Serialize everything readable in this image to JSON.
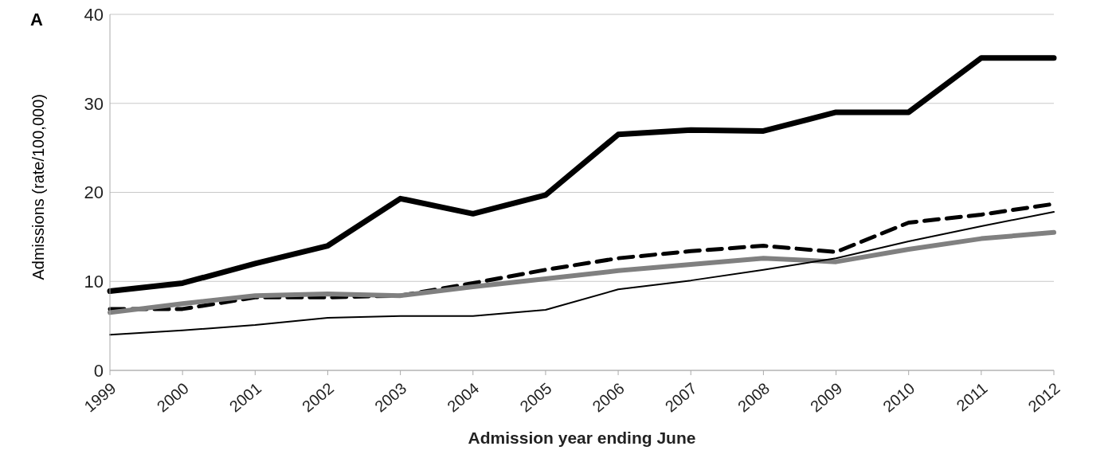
{
  "chart_data": {
    "type": "line",
    "xlabel": "Admission year ending June",
    "ylabel": "Admissions (rate/100,000)",
    "annotations": [
      "A"
    ],
    "categories": [
      "1999",
      "2000",
      "2001",
      "2002",
      "2003",
      "2004",
      "2005",
      "2006",
      "2007",
      "2008",
      "2009",
      "2010",
      "2011",
      "2012"
    ],
    "series": [
      {
        "color": "#000000",
        "line_style": "solid",
        "values": [
          8.9,
          9.8,
          12.0,
          14.0,
          19.3,
          17.6,
          19.7,
          26.5,
          27.0,
          26.9,
          29.0,
          29.0,
          35.1,
          35.1
        ]
      },
      {
        "color": "#000000",
        "line_style": "dashed",
        "values": [
          6.9,
          6.9,
          8.2,
          8.2,
          8.4,
          9.8,
          11.3,
          12.6,
          13.4,
          14.0,
          13.3,
          16.6,
          17.5,
          18.7
        ]
      },
      {
        "color": "#808080",
        "line_style": "solid",
        "values": [
          6.5,
          7.5,
          8.4,
          8.6,
          8.4,
          9.4,
          10.3,
          11.2,
          11.9,
          12.6,
          12.2,
          13.6,
          14.8,
          15.5
        ]
      },
      {
        "color": "#000000",
        "line_style": "solid",
        "values": [
          4.0,
          4.5,
          5.1,
          5.9,
          6.1,
          6.1,
          6.8,
          9.1,
          10.1,
          11.3,
          12.6,
          14.5,
          16.2,
          17.8
        ]
      }
    ],
    "ylim": [
      0,
      40
    ],
    "yticks": [
      0,
      10,
      20,
      30,
      40
    ],
    "grid": "y",
    "legend": false,
    "marker": "none"
  }
}
